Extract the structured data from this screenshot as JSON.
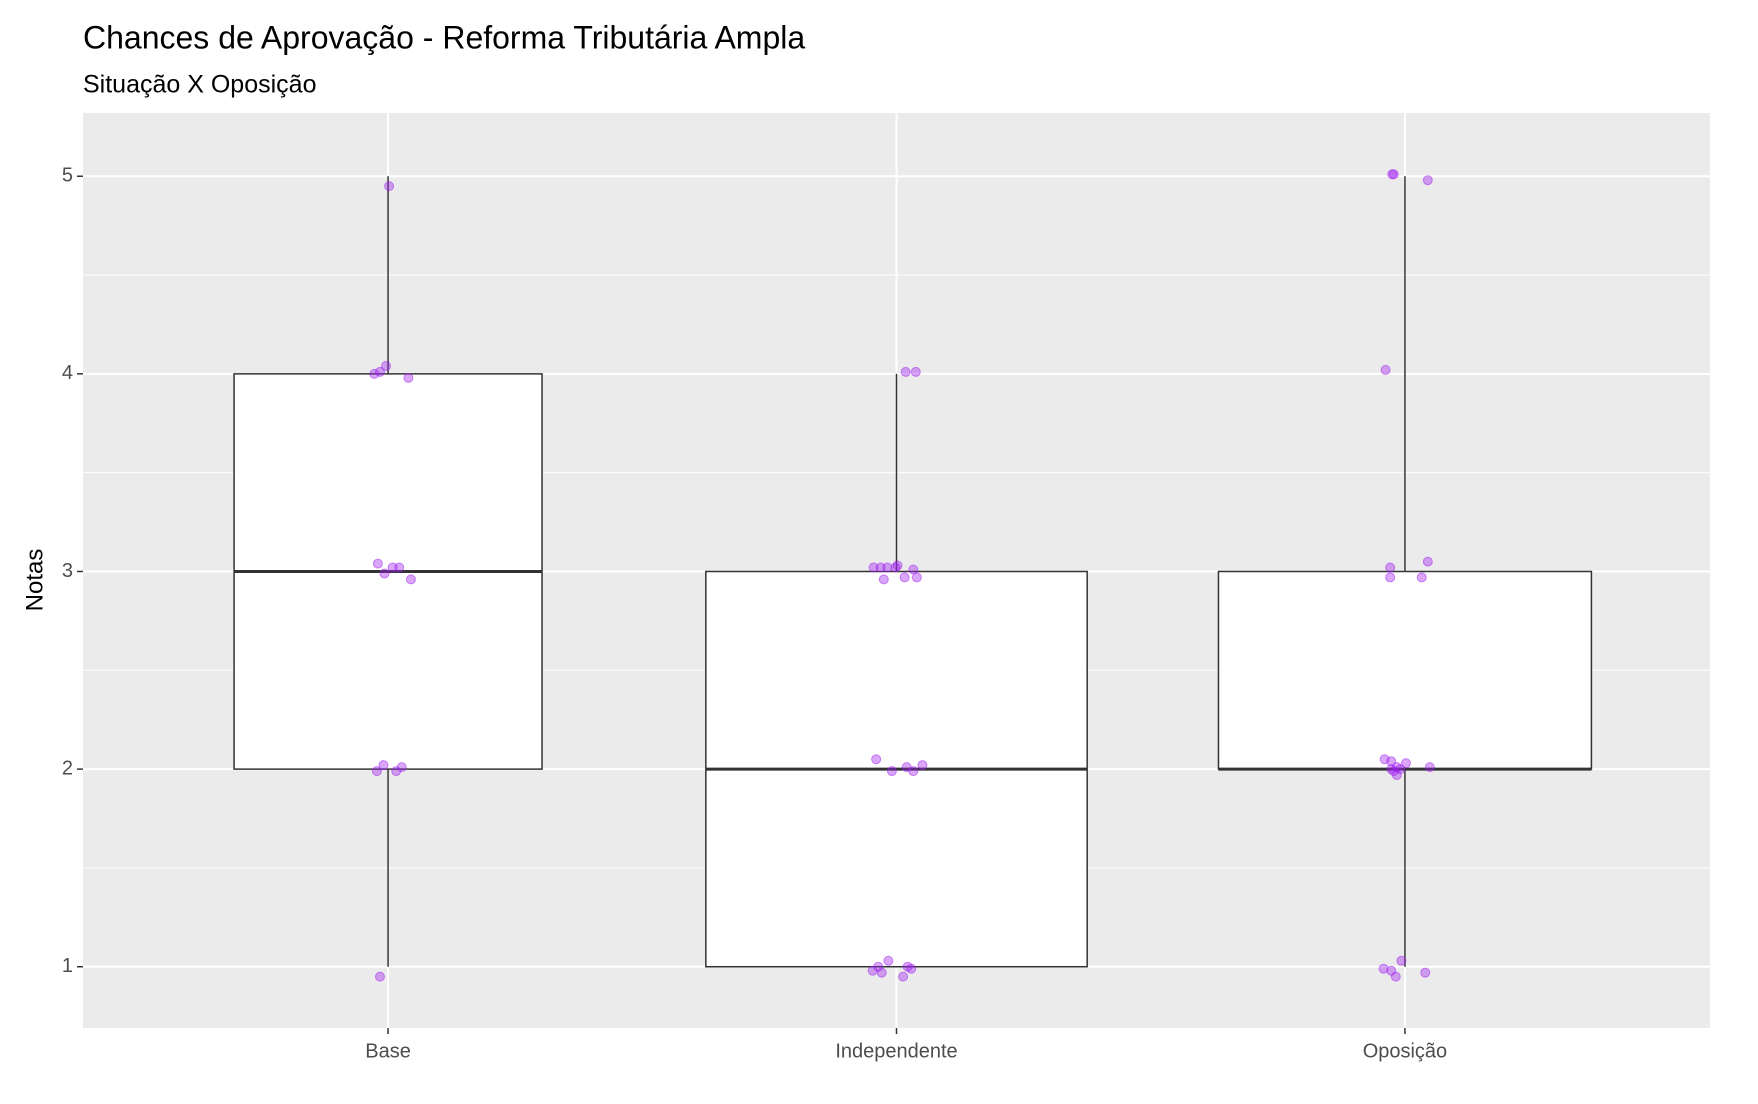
{
  "chart_data": {
    "type": "boxplot",
    "title": "Chances de Aprovação - Reforma Tributária Ampla",
    "subtitle": "Situação X Oposição",
    "y_label": "Notas",
    "categories": [
      "Base",
      "Independente",
      "Oposição"
    ],
    "boxes": [
      {
        "min": 1,
        "q1": 2,
        "median": 3,
        "q3": 4,
        "max": 5
      },
      {
        "min": 1,
        "q1": 1,
        "median": 2,
        "q3": 3,
        "max": 4
      },
      {
        "min": 1,
        "q1": 2,
        "median": 2,
        "q3": 3,
        "max": 5
      }
    ],
    "points": [
      {
        "x": [
          1.002,
          0.973,
          0.984,
          0.996,
          1.04,
          0.98,
          0.993,
          1.009,
          1.022,
          1.045,
          0.991,
          0.978,
          1.016,
          1.027,
          0.984
        ],
        "y": [
          4.95,
          4.0,
          4.01,
          4.04,
          3.98,
          3.04,
          2.99,
          3.02,
          3.02,
          2.96,
          2.02,
          1.99,
          1.99,
          2.01,
          0.95
        ]
      },
      {
        "x": [
          2.018,
          2.038,
          1.955,
          1.969,
          1.982,
          1.998,
          1.975,
          2.002,
          2.016,
          2.033,
          2.04,
          1.96,
          1.991,
          2.02,
          2.033,
          2.051,
          1.953,
          1.964,
          1.984,
          2.013,
          2.022,
          2.029,
          1.971
        ],
        "y": [
          4.01,
          4.01,
          3.02,
          3.02,
          3.02,
          3.02,
          2.96,
          3.03,
          2.97,
          3.01,
          2.97,
          2.05,
          1.99,
          2.01,
          1.99,
          2.02,
          0.98,
          1.0,
          1.03,
          0.95,
          1.0,
          0.99,
          0.97
        ]
      },
      {
        "x": [
          2.975,
          2.978,
          3.045,
          2.962,
          2.971,
          2.971,
          3.033,
          3.045,
          2.96,
          2.973,
          2.984,
          3.002,
          2.978,
          2.984,
          2.991,
          2.973,
          3.049,
          2.958,
          2.973,
          2.982,
          2.993,
          3.04
        ],
        "y": [
          5.01,
          5.01,
          4.98,
          4.02,
          3.02,
          2.97,
          2.97,
          3.05,
          2.05,
          2.04,
          2.01,
          2.03,
          1.99,
          1.97,
          2.0,
          2.0,
          2.01,
          0.99,
          0.98,
          0.95,
          1.03,
          0.97
        ]
      }
    ],
    "point_color": "#a020f0",
    "varwidth": true,
    "xlim": [
      0.4,
      3.6
    ],
    "ylim": [
      0.69,
      5.32
    ],
    "yticks": [
      1,
      2,
      3,
      4,
      5
    ],
    "grid": true
  }
}
